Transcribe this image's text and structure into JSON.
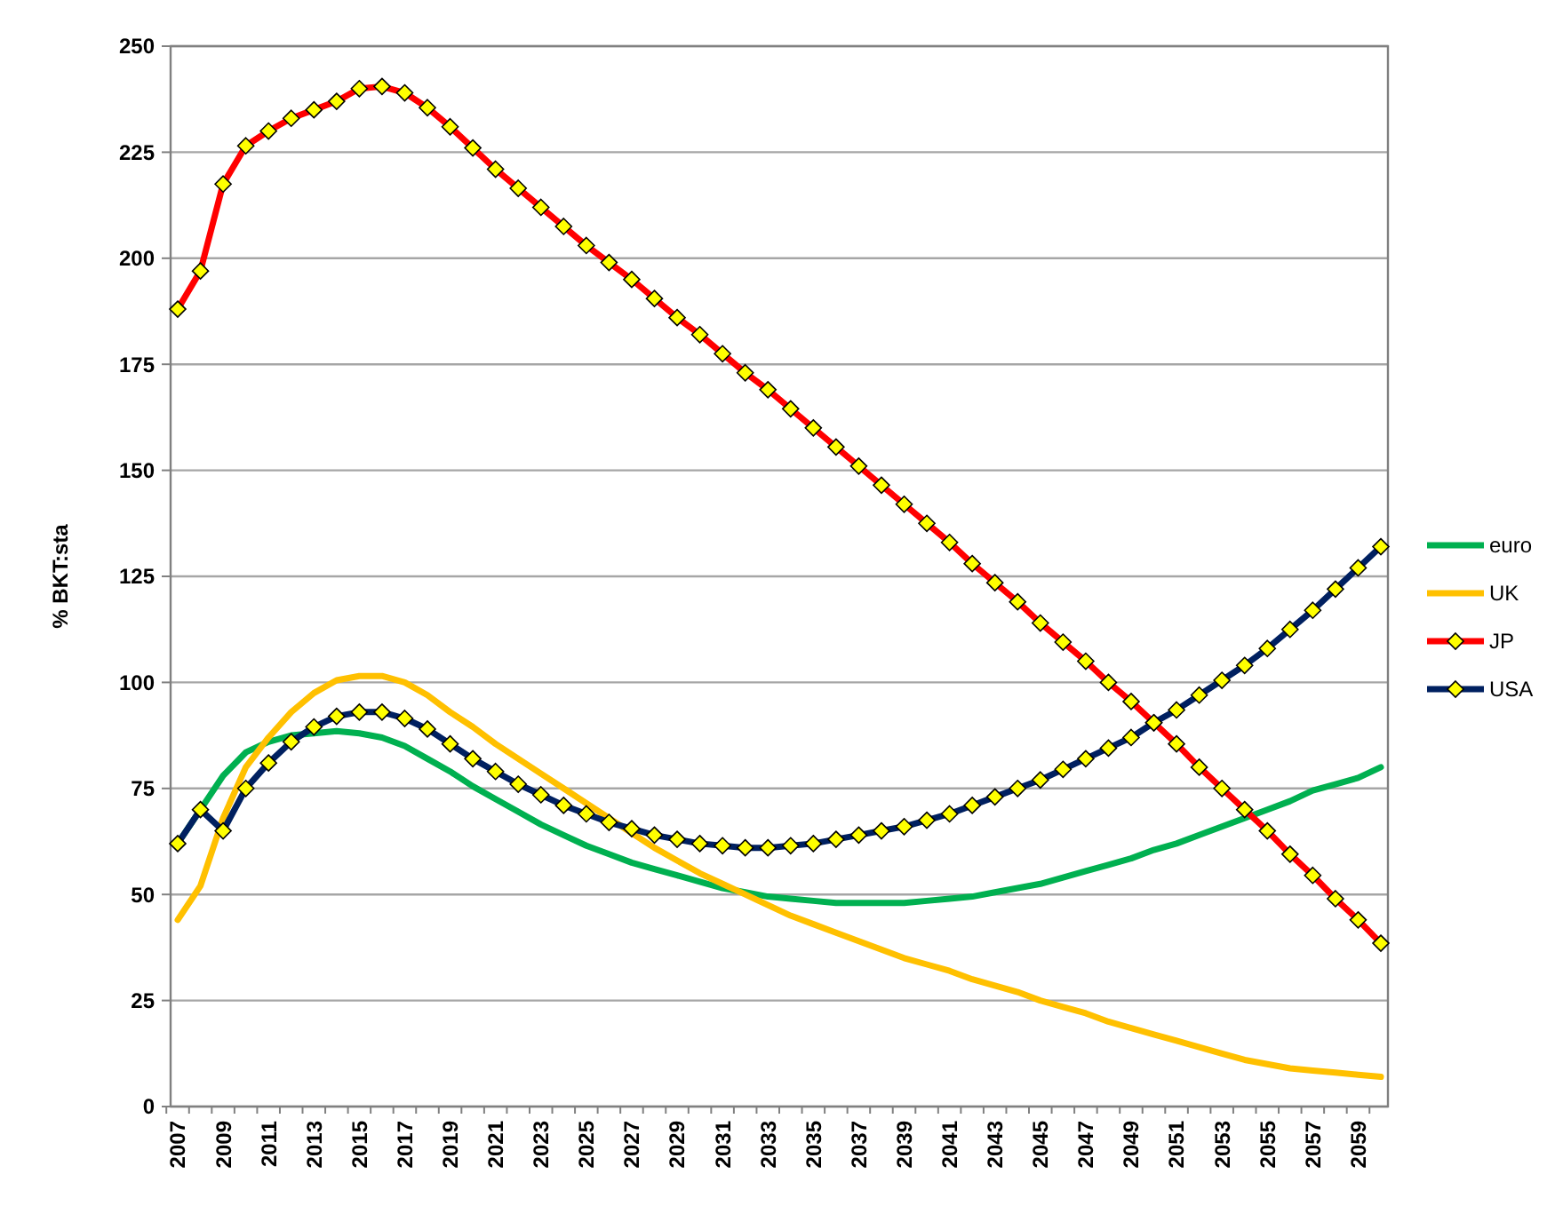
{
  "chart_data": {
    "type": "line",
    "ylabel": "% BKT:sta",
    "categories": [
      "2007",
      null,
      "2009",
      null,
      "2011",
      null,
      "2013",
      null,
      "2015",
      null,
      "2017",
      null,
      "2019",
      null,
      "2021",
      null,
      "2023",
      null,
      "2025",
      null,
      "2027",
      null,
      "2029",
      null,
      "2031",
      null,
      "2033",
      null,
      "2035",
      null,
      "2037",
      null,
      "2039",
      null,
      "2041",
      null,
      "2043",
      null,
      "2045",
      null,
      "2047",
      null,
      "2049",
      null,
      "2051",
      null,
      "2053",
      null,
      "2055",
      null,
      "2057",
      null,
      "2059",
      null
    ],
    "ylim": [
      0,
      250
    ],
    "yticks": [
      0,
      25,
      50,
      75,
      100,
      125,
      150,
      175,
      200,
      225,
      250
    ],
    "grid": "y",
    "legend": "right",
    "series": [
      {
        "name": "euro",
        "color": "#00b050",
        "marker": "none",
        "values": [
          62,
          70,
          78,
          83.5,
          86,
          87.5,
          88,
          88.5,
          88,
          87,
          85,
          82,
          79,
          75.5,
          72.5,
          69.5,
          66.5,
          64,
          61.5,
          59.5,
          57.5,
          56,
          54.5,
          53,
          51.5,
          50.5,
          49.5,
          49,
          48.5,
          48,
          48,
          48,
          48,
          48.5,
          49,
          49.5,
          50.5,
          51.5,
          52.5,
          54,
          55.5,
          57,
          58.5,
          60.5,
          62,
          64,
          66,
          68,
          70,
          72,
          74.5,
          76,
          77.5,
          80
        ]
      },
      {
        "name": "UK",
        "color": "#ffc000",
        "marker": "none",
        "values": [
          44,
          52,
          68,
          80,
          87,
          93,
          97.5,
          100.5,
          101.5,
          101.5,
          100,
          97,
          93,
          89.5,
          85.5,
          82,
          78.5,
          75,
          71.5,
          68,
          64.5,
          61,
          58,
          55,
          52.5,
          50,
          47.5,
          45,
          43,
          41,
          39,
          37,
          35,
          33.5,
          32,
          30,
          28.5,
          27,
          25,
          23.5,
          22,
          20,
          18.5,
          17,
          15.5,
          14,
          12.5,
          11,
          10,
          9,
          8.5,
          8,
          7.5,
          7
        ]
      },
      {
        "name": "JP",
        "color": "#ff0000",
        "marker": "diamond",
        "values": [
          188,
          197,
          217.5,
          226.5,
          230,
          233,
          235,
          237,
          240,
          240.5,
          239,
          235.5,
          231,
          226,
          221,
          216.5,
          212,
          207.5,
          203,
          199,
          195,
          190.5,
          186,
          182,
          177.5,
          173,
          169,
          164.5,
          160,
          155.5,
          151,
          146.5,
          142,
          137.5,
          133,
          128,
          123.5,
          119,
          114,
          109.5,
          105,
          100,
          95.5,
          90.5,
          85.5,
          80,
          75,
          70,
          65,
          59.5,
          54.5,
          49,
          44,
          38.5
        ]
      },
      {
        "name": "USA",
        "color": "#002060",
        "marker": "diamond",
        "values": [
          62,
          70,
          65,
          75,
          81,
          86,
          89.5,
          92,
          93,
          93,
          91.5,
          89,
          85.5,
          82,
          79,
          76,
          73.5,
          71,
          69,
          67,
          65.5,
          64,
          63,
          62,
          61.5,
          61,
          61,
          61.5,
          62,
          63,
          64,
          65,
          66,
          67.5,
          69,
          71,
          73,
          75,
          77,
          79.5,
          82,
          84.5,
          87,
          90.5,
          93.5,
          97,
          100.5,
          104,
          108,
          112.5,
          117,
          122,
          127,
          132
        ]
      }
    ]
  }
}
